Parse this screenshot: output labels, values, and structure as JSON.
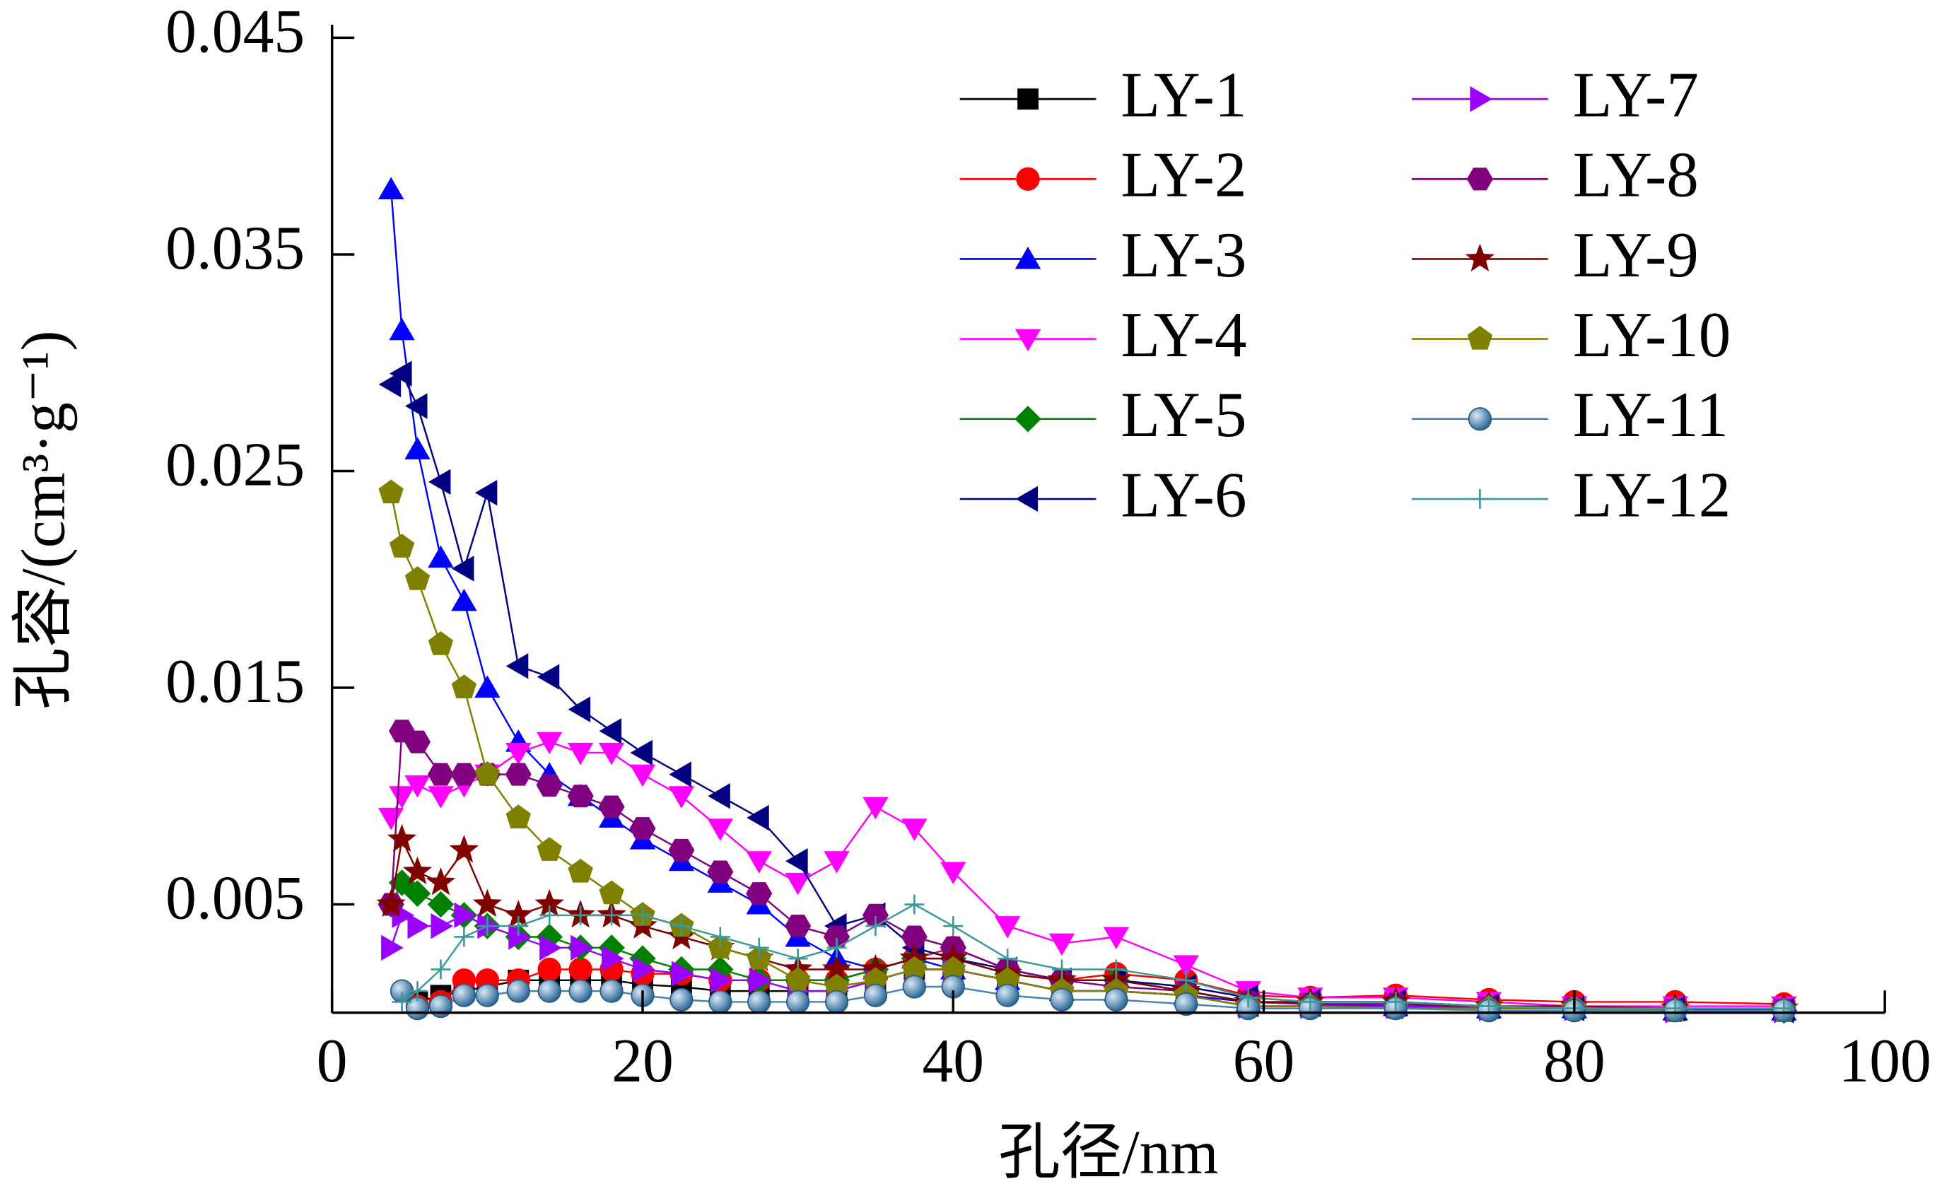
{
  "chart_data": {
    "type": "line",
    "xlabel": "孔径/nm",
    "ylabel": "孔容/(cm³·g⁻¹)",
    "xlim": [
      0,
      100
    ],
    "xticks": [
      0,
      20,
      40,
      60,
      80,
      100
    ],
    "ylim": [
      0,
      0.045
    ],
    "yticks": [
      0.005,
      0.015,
      0.025,
      0.035,
      0.045
    ],
    "legend": "upper right",
    "x": [
      3.8,
      4.5,
      5.5,
      7,
      8.5,
      10,
      12,
      14,
      16,
      18,
      20,
      22.5,
      25,
      27.5,
      30,
      32.5,
      35,
      37.5,
      40,
      43.5,
      47,
      50.5,
      55,
      59,
      63,
      68.5,
      74.5,
      80,
      86.5,
      93.5
    ],
    "series": [
      {
        "name": "LY-1",
        "color": "#000000",
        "marker": "square",
        "values": [
          null,
          null,
          0.0005,
          0.0008,
          0.001,
          0.0012,
          0.0015,
          0.0015,
          0.0015,
          0.0015,
          0.0013,
          0.0012,
          0.001,
          0.001,
          0.001,
          0.001,
          0.0015,
          0.002,
          0.002,
          0.0015,
          0.001,
          0.001,
          0.0008,
          0.0003,
          0.0003,
          0.0003,
          0.0002,
          0.0002,
          0.0001,
          0.0001
        ]
      },
      {
        "name": "LY-2",
        "color": "#ff0000",
        "marker": "circle",
        "values": [
          null,
          null,
          0.0003,
          0.0005,
          0.0015,
          0.0015,
          0.0015,
          0.002,
          0.002,
          0.002,
          0.0018,
          0.0018,
          0.0015,
          0.0015,
          0.0015,
          0.0015,
          0.002,
          0.0025,
          0.003,
          0.002,
          0.0015,
          0.0018,
          0.0015,
          0.0008,
          0.0007,
          0.0008,
          0.0006,
          0.0005,
          0.0005,
          0.0004
        ]
      },
      {
        "name": "LY-3",
        "color": "#0000ff",
        "marker": "triangle-up",
        "values": [
          0.038,
          0.0315,
          0.026,
          0.021,
          0.019,
          0.015,
          0.0125,
          0.011,
          0.01,
          0.009,
          0.008,
          0.007,
          0.006,
          0.005,
          0.0035,
          0.0025,
          0.002,
          0.0025,
          0.002,
          0.0015,
          0.001,
          0.001,
          0.0008,
          0.0005,
          0.0004,
          0.0003,
          0.0002,
          0.0002,
          0.0001,
          0.0001
        ]
      },
      {
        "name": "LY-4",
        "color": "#ff00ff",
        "marker": "triangle-down",
        "values": [
          0.009,
          0.01,
          0.0105,
          0.01,
          0.0105,
          0.011,
          0.012,
          0.0125,
          0.012,
          0.012,
          0.011,
          0.01,
          0.0085,
          0.007,
          0.006,
          0.007,
          0.0095,
          0.0085,
          0.0065,
          0.004,
          0.0032,
          0.0035,
          0.0022,
          0.001,
          0.0007,
          0.0007,
          0.0005,
          0.0003,
          0.0003,
          0.0003
        ]
      },
      {
        "name": "LY-5",
        "color": "#008000",
        "marker": "diamond",
        "values": [
          0.005,
          0.006,
          0.0055,
          0.005,
          0.0045,
          0.004,
          0.0035,
          0.0035,
          0.003,
          0.003,
          0.0025,
          0.002,
          0.002,
          0.0015,
          0.0015,
          0.0015,
          0.002,
          0.0025,
          0.0025,
          0.0018,
          0.0015,
          0.0015,
          0.001,
          0.0005,
          0.0004,
          0.0004,
          0.0003,
          0.0002,
          0.0002,
          0.0001
        ]
      },
      {
        "name": "LY-6",
        "color": "#000080",
        "marker": "triangle-left",
        "values": [
          0.029,
          0.0295,
          0.028,
          0.0245,
          0.0205,
          0.024,
          0.016,
          0.0155,
          0.014,
          0.013,
          0.012,
          0.011,
          0.01,
          0.009,
          0.007,
          0.004,
          0.0045,
          0.003,
          0.0025,
          0.002,
          0.0015,
          0.0015,
          0.0012,
          0.0007,
          0.0005,
          0.0005,
          0.0003,
          0.0002,
          0.0002,
          0.0001
        ]
      },
      {
        "name": "LY-7",
        "color": "#9900ff",
        "marker": "triangle-right",
        "values": [
          0.003,
          0.0045,
          0.004,
          0.004,
          0.0045,
          0.004,
          0.0035,
          0.003,
          0.003,
          0.0025,
          0.002,
          0.0018,
          0.0015,
          0.0015,
          0.001,
          0.001,
          0.0015,
          0.002,
          0.002,
          0.0015,
          0.001,
          0.001,
          0.0008,
          0.0003,
          0.0003,
          0.0003,
          0.0002,
          0.0002,
          0.0001,
          0.0001
        ]
      },
      {
        "name": "LY-8",
        "color": "#800080",
        "marker": "hexagon",
        "values": [
          0.005,
          0.013,
          0.0125,
          0.011,
          0.011,
          0.011,
          0.011,
          0.0105,
          0.01,
          0.0095,
          0.0085,
          0.0075,
          0.0065,
          0.0055,
          0.004,
          0.0035,
          0.0045,
          0.0035,
          0.003,
          0.002,
          0.0015,
          0.0012,
          0.001,
          0.0005,
          0.0004,
          0.0004,
          0.0002,
          0.0002,
          0.0001,
          0.0001
        ]
      },
      {
        "name": "LY-9",
        "color": "#800000",
        "marker": "star",
        "values": [
          0.005,
          0.008,
          0.0065,
          0.006,
          0.0075,
          0.005,
          0.0045,
          0.005,
          0.0045,
          0.0045,
          0.004,
          0.0035,
          0.003,
          0.0025,
          0.002,
          0.002,
          0.002,
          0.0025,
          0.0025,
          0.0018,
          0.0015,
          0.0015,
          0.001,
          0.0005,
          0.0005,
          0.0005,
          0.0003,
          0.0003,
          0.0002,
          0.0002
        ]
      },
      {
        "name": "LY-10",
        "color": "#808000",
        "marker": "pentagon",
        "values": [
          0.024,
          0.0215,
          0.02,
          0.017,
          0.015,
          0.011,
          0.009,
          0.0075,
          0.0065,
          0.0055,
          0.0045,
          0.004,
          0.003,
          0.0025,
          0.0015,
          0.0012,
          0.0015,
          0.002,
          0.002,
          0.0015,
          0.001,
          0.001,
          0.0008,
          0.0003,
          0.0003,
          0.0002,
          0.0002,
          0.0002,
          0.0001,
          0.0001
        ]
      },
      {
        "name": "LY-11",
        "color": "#4682b4",
        "marker": "sphere",
        "values": [
          null,
          0.001,
          0.0002,
          0.0003,
          0.0008,
          0.0008,
          0.001,
          0.001,
          0.001,
          0.001,
          0.0008,
          0.0006,
          0.0005,
          0.0005,
          0.0005,
          0.0005,
          0.0008,
          0.0012,
          0.0012,
          0.0008,
          0.0006,
          0.0006,
          0.0004,
          0.0002,
          0.0002,
          0.0002,
          0.0001,
          0.0001,
          0.0001,
          0.0001
        ]
      },
      {
        "name": "LY-12",
        "color": "#3a9a9a",
        "marker": "plus",
        "values": [
          null,
          0.0005,
          0.001,
          0.002,
          0.0035,
          0.004,
          0.004,
          0.0045,
          0.0045,
          0.0045,
          0.0045,
          0.004,
          0.0035,
          0.003,
          0.0025,
          0.003,
          0.004,
          0.005,
          0.004,
          0.0025,
          0.002,
          0.002,
          0.0015,
          0.0007,
          0.0005,
          0.0005,
          0.0003,
          0.0002,
          0.0002,
          0.0002
        ]
      }
    ]
  }
}
